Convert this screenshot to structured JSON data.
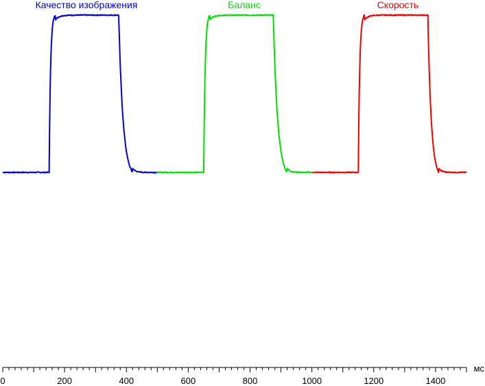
{
  "chart_data": {
    "type": "line",
    "xlabel": "мс",
    "ylabel": "",
    "xlim": [
      0,
      1500
    ],
    "ylim": [
      0,
      1
    ],
    "grid": false,
    "x_ticks_major": [
      0,
      200,
      400,
      600,
      800,
      1000,
      1200,
      1400
    ],
    "x_tick_labels": [
      "0",
      "200",
      "400",
      "600",
      "800",
      "1000",
      "1200",
      "1400"
    ],
    "x_minor_step": 20,
    "series": [
      {
        "name": "Качество изображения",
        "color": "#0000cc",
        "x_range": [
          0,
          500
        ],
        "low": 0.0,
        "high": 1.0,
        "rise_start": 150,
        "rise_end": 170,
        "fall_start": 375,
        "fall_end": 420
      },
      {
        "name": "Баланс",
        "color": "#00e000",
        "x_range": [
          500,
          1000
        ],
        "low": 0.0,
        "high": 1.0,
        "rise_start": 650,
        "rise_end": 670,
        "fall_start": 875,
        "fall_end": 920
      },
      {
        "name": "Скорость",
        "color": "#ee0000",
        "x_range": [
          1000,
          1500
        ],
        "low": 0.0,
        "high": 1.0,
        "rise_start": 1150,
        "rise_end": 1170,
        "fall_start": 1375,
        "fall_end": 1410
      }
    ]
  }
}
